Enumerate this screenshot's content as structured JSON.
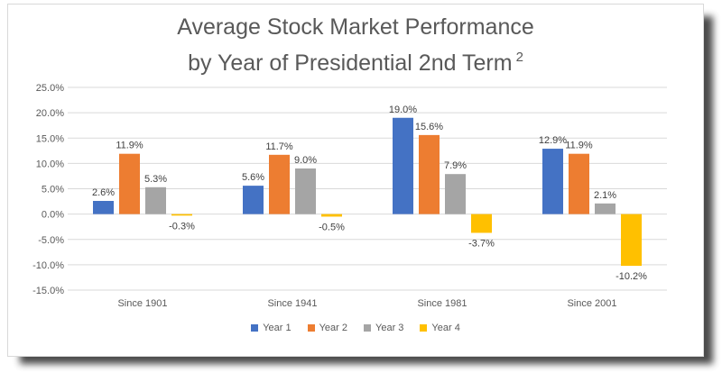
{
  "chart_data": {
    "type": "bar",
    "title": "Average Stock Market Performance",
    "title_line2": "by Year of Presidential 2nd Term",
    "title_superscript": "2",
    "categories": [
      "Since 1901",
      "Since 1941",
      "Since 1981",
      "Since 2001"
    ],
    "series": [
      {
        "name": "Year 1",
        "color": "#4472c4",
        "values": [
          2.6,
          5.6,
          19.0,
          12.9
        ],
        "labels": [
          "2.6%",
          "5.6%",
          "19.0%",
          "12.9%"
        ]
      },
      {
        "name": "Year 2",
        "color": "#ed7d31",
        "values": [
          11.9,
          11.7,
          15.6,
          11.9
        ],
        "labels": [
          "11.9%",
          "11.7%",
          "15.6%",
          "11.9%"
        ]
      },
      {
        "name": "Year 3",
        "color": "#a5a5a5",
        "values": [
          5.3,
          9.0,
          7.9,
          2.1
        ],
        "labels": [
          "5.3%",
          "9.0%",
          "7.9%",
          "2.1%"
        ]
      },
      {
        "name": "Year 4",
        "color": "#ffc000",
        "values": [
          -0.3,
          -0.5,
          -3.7,
          -10.2
        ],
        "labels": [
          "-0.3%",
          "-0.5%",
          "-3.7%",
          "-10.2%"
        ]
      }
    ],
    "y_ticks": [
      25,
      20,
      15,
      10,
      5,
      0,
      -5,
      -10,
      -15
    ],
    "y_tick_labels": [
      "25.0%",
      "20.0%",
      "15.0%",
      "10.0%",
      "5.0%",
      "0.0%",
      "-5.0%",
      "-10.0%",
      "-15.0%"
    ],
    "ylim": [
      -15,
      25
    ],
    "grid": true,
    "legend_position": "bottom"
  }
}
